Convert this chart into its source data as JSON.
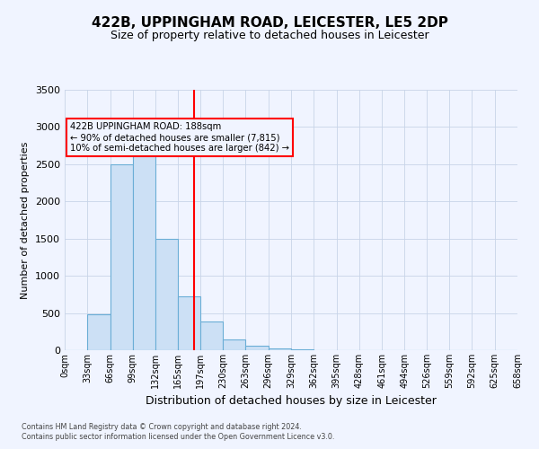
{
  "title": "422B, UPPINGHAM ROAD, LEICESTER, LE5 2DP",
  "subtitle": "Size of property relative to detached houses in Leicester",
  "xlabel": "Distribution of detached houses by size in Leicester",
  "ylabel": "Number of detached properties",
  "bin_edges": [
    0,
    33,
    66,
    99,
    132,
    165,
    197,
    230,
    263,
    296,
    329,
    362,
    395,
    428,
    461,
    494,
    526,
    559,
    592,
    625,
    658
  ],
  "bar_heights": [
    5,
    480,
    2500,
    2800,
    1500,
    730,
    390,
    145,
    65,
    25,
    10,
    5,
    5,
    5,
    5,
    5,
    0,
    0,
    5,
    0
  ],
  "bar_facecolor": "#cce0f5",
  "bar_edgecolor": "#6baed6",
  "property_line_x": 188,
  "property_line_color": "red",
  "ylim": [
    0,
    3500
  ],
  "yticks": [
    0,
    500,
    1000,
    1500,
    2000,
    2500,
    3000,
    3500
  ],
  "annotation_title": "422B UPPINGHAM ROAD: 188sqm",
  "annotation_line1": "← 90% of detached houses are smaller (7,815)",
  "annotation_line2": "10% of semi-detached houses are larger (842) →",
  "annotation_box_color": "red",
  "footer_line1": "Contains HM Land Registry data © Crown copyright and database right 2024.",
  "footer_line2": "Contains public sector information licensed under the Open Government Licence v3.0.",
  "tick_labels": [
    "0sqm",
    "33sqm",
    "66sqm",
    "99sqm",
    "132sqm",
    "165sqm",
    "197sqm",
    "230sqm",
    "263sqm",
    "296sqm",
    "329sqm",
    "362sqm",
    "395sqm",
    "428sqm",
    "461sqm",
    "494sqm",
    "526sqm",
    "559sqm",
    "592sqm",
    "625sqm",
    "658sqm"
  ],
  "background_color": "#f0f4ff",
  "grid_color": "#c8d4e8",
  "title_fontsize": 11,
  "subtitle_fontsize": 9,
  "ylabel_fontsize": 8,
  "xlabel_fontsize": 9,
  "ytick_fontsize": 8,
  "xtick_fontsize": 7
}
